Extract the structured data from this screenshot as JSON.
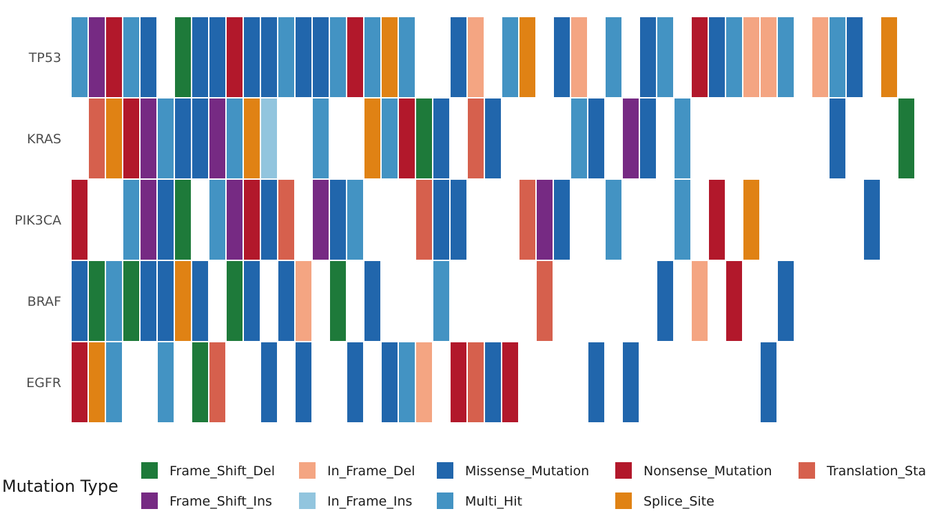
{
  "chart_data": {
    "type": "heatmap",
    "title": "",
    "genes": [
      "TP53",
      "KRAS",
      "PIK3CA",
      "BRAF",
      "EGFR"
    ],
    "num_samples": 49,
    "mutation_types": [
      {
        "key": "FSD",
        "label": "Frame_Shift_Del",
        "color": "#1e7a3a"
      },
      {
        "key": "FSI",
        "label": "Frame_Shift_Ins",
        "color": "#762a83"
      },
      {
        "key": "IFD",
        "label": "In_Frame_Del",
        "color": "#f4a582"
      },
      {
        "key": "IFI",
        "label": "In_Frame_Ins",
        "color": "#92c5de"
      },
      {
        "key": "MIS",
        "label": "Missense_Mutation",
        "color": "#2166ac"
      },
      {
        "key": "MH",
        "label": "Multi_Hit",
        "color": "#4393c3"
      },
      {
        "key": "NON",
        "label": "Nonsense_Mutation",
        "color": "#b2182b"
      },
      {
        "key": "SS",
        "label": "Splice_Site",
        "color": "#e08214"
      },
      {
        "key": "TSS",
        "label": "Translation_Start_Site",
        "color": "#d6604d"
      }
    ],
    "legend_title": "Mutation Type",
    "legend_position": "bottom",
    "matrix": {
      "TP53": [
        "MH",
        "FSI",
        "NON",
        "MH",
        "MIS",
        "",
        "FSD",
        "MIS",
        "MIS",
        "NON",
        "MIS",
        "MIS",
        "MH",
        "MIS",
        "MIS",
        "MH",
        "NON",
        "MH",
        "SS",
        "MH",
        "",
        "",
        "MIS",
        "IFD",
        "",
        "MH",
        "SS",
        "",
        "MIS",
        "IFD",
        "",
        "MH",
        "",
        "MIS",
        "MH",
        "",
        "NON",
        "MIS",
        "MH",
        "IFD",
        "IFD",
        "MH",
        "",
        "IFD",
        "MH",
        "MIS",
        "",
        "SS",
        ""
      ],
      "KRAS": [
        "",
        "TSS",
        "SS",
        "NON",
        "FSI",
        "MH",
        "MIS",
        "MIS",
        "FSI",
        "MH",
        "SS",
        "IFI",
        "",
        "",
        "MH",
        "",
        "",
        "SS",
        "MH",
        "NON",
        "FSD",
        "MIS",
        "",
        "TSS",
        "MIS",
        "",
        "",
        "",
        "",
        "MH",
        "MIS",
        "",
        "FSI",
        "MIS",
        "",
        "MH",
        "",
        "",
        "",
        "",
        "",
        "",
        "",
        "",
        "MIS",
        "",
        "",
        "",
        "FSD"
      ],
      "PIK3CA": [
        "NON",
        "",
        "",
        "MH",
        "FSI",
        "MIS",
        "FSD",
        "",
        "MH",
        "FSI",
        "NON",
        "MIS",
        "TSS",
        "",
        "FSI",
        "MIS",
        "MH",
        "",
        "",
        "",
        "TSS",
        "MIS",
        "MIS",
        "",
        "",
        "",
        "TSS",
        "FSI",
        "MIS",
        "",
        "",
        "MH",
        "",
        "",
        "",
        "MH",
        "",
        "NON",
        "",
        "SS",
        "",
        "",
        "",
        "",
        "",
        "",
        "MIS",
        "",
        ""
      ],
      "BRAF": [
        "MIS",
        "FSD",
        "MH",
        "FSD",
        "MIS",
        "MIS",
        "SS",
        "MIS",
        "",
        "FSD",
        "MIS",
        "",
        "MIS",
        "IFD",
        "",
        "FSD",
        "",
        "MIS",
        "",
        "",
        "",
        "MH",
        "",
        "",
        "",
        "",
        "",
        "TSS",
        "",
        "",
        "",
        "",
        "",
        "",
        "MIS",
        "",
        "IFD",
        "",
        "NON",
        "",
        "",
        "MIS",
        "",
        "",
        "",
        "",
        "",
        "",
        ""
      ],
      "EGFR": [
        "NON",
        "SS",
        "MH",
        "",
        "",
        "MH",
        "",
        "FSD",
        "TSS",
        "",
        "",
        "MIS",
        "",
        "MIS",
        "",
        "",
        "MIS",
        "",
        "MIS",
        "MH",
        "IFD",
        "",
        "NON",
        "TSS",
        "MIS",
        "NON",
        "",
        "",
        "",
        "",
        "MIS",
        "",
        "MIS",
        "",
        "",
        "",
        "",
        "",
        "",
        "",
        "MIS",
        "",
        "",
        "",
        "",
        "",
        "",
        "",
        ""
      ]
    }
  }
}
